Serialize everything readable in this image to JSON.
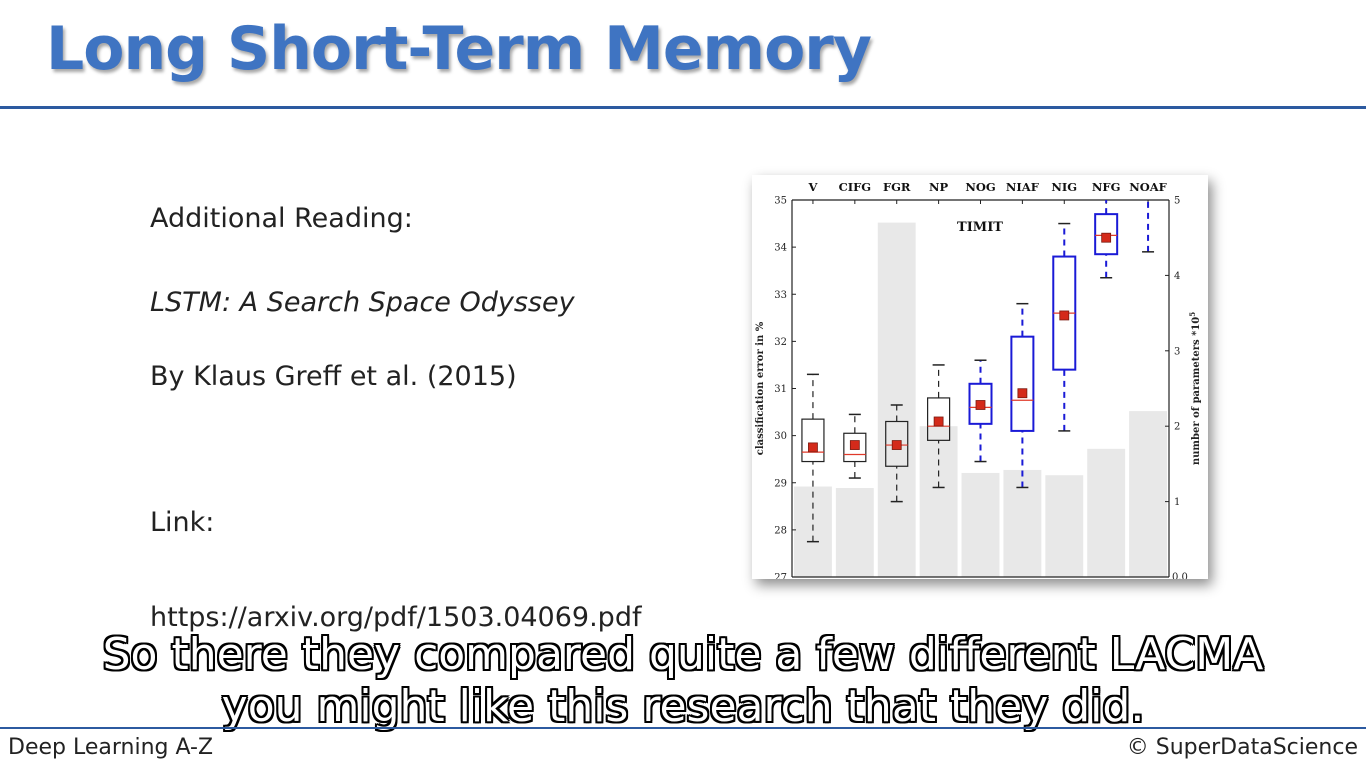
{
  "slide": {
    "title": "Long Short-Term Memory",
    "heading": "Additional Reading:",
    "paper_title": "LSTM: A Search Space Odyssey",
    "authors": "By Klaus Greff et al. (2015)",
    "link_label": "Link:",
    "link_url": "https://arxiv.org/pdf/1503.04069.pdf"
  },
  "caption": {
    "line1": "So there they compared quite a few different LACMA",
    "line2": "you might like this research that they did."
  },
  "footer": {
    "left": "Deep Learning A-Z",
    "right": "© SuperDataScience"
  },
  "colors": {
    "title": "#3f74c2",
    "rule": "#2c5aa0",
    "box_black": "#222222",
    "box_blue": "#1a1ad6",
    "mean_marker": "#d42a1a",
    "median": "#e03a2a",
    "param_bar": "#e8e8e8"
  },
  "chart_data": {
    "type": "bar",
    "title": "TIMIT",
    "categories": [
      "V",
      "CIFG",
      "FGR",
      "NP",
      "NOG",
      "NIAF",
      "NIG",
      "NFG",
      "NOAF"
    ],
    "ylabel": "classification error in %",
    "ylim": [
      27,
      35
    ],
    "yticks": [
      27,
      28,
      29,
      30,
      31,
      32,
      33,
      34,
      35
    ],
    "y2label": "number of parameters *10",
    "y2label_exponent": "5",
    "y2lim": [
      0,
      5
    ],
    "y2ticks": [
      "1",
      "2",
      "3",
      "4",
      "5"
    ],
    "y2tick_bottom": "0.0",
    "parameters_e5": [
      1.2,
      1.18,
      4.7,
      2.0,
      1.38,
      1.42,
      1.35,
      1.7,
      2.2
    ],
    "boxes": [
      {
        "name": "V",
        "color": "black",
        "whisker_low": 27.75,
        "q1": 29.45,
        "median": 29.65,
        "q3": 30.35,
        "whisker_high": 31.3,
        "mean": 29.75
      },
      {
        "name": "CIFG",
        "color": "black",
        "whisker_low": 29.1,
        "q1": 29.45,
        "median": 29.6,
        "q3": 30.05,
        "whisker_high": 30.45,
        "mean": 29.8
      },
      {
        "name": "FGR",
        "color": "black",
        "whisker_low": 28.6,
        "q1": 29.35,
        "median": 29.8,
        "q3": 30.3,
        "whisker_high": 30.65,
        "mean": 29.8
      },
      {
        "name": "NP",
        "color": "black",
        "whisker_low": 28.9,
        "q1": 29.9,
        "median": 30.2,
        "q3": 30.8,
        "whisker_high": 31.5,
        "mean": 30.3
      },
      {
        "name": "NOG",
        "color": "blue",
        "whisker_low": 29.45,
        "q1": 30.25,
        "median": 30.6,
        "q3": 31.1,
        "whisker_high": 31.6,
        "mean": 30.65
      },
      {
        "name": "NIAF",
        "color": "blue",
        "whisker_low": 28.9,
        "q1": 30.1,
        "median": 30.75,
        "q3": 32.1,
        "whisker_high": 32.8,
        "mean": 30.9
      },
      {
        "name": "NIG",
        "color": "blue",
        "whisker_low": 30.1,
        "q1": 31.4,
        "median": 32.6,
        "q3": 33.8,
        "whisker_high": 34.5,
        "mean": 32.55
      },
      {
        "name": "NFG",
        "color": "blue",
        "whisker_low": 33.35,
        "q1": 33.85,
        "median": 34.25,
        "q3": 34.7,
        "whisker_high": 35.3,
        "mean": 34.2
      },
      {
        "name": "NOAF",
        "color": "blue",
        "whisker_low": 33.9,
        "q1": null,
        "median": null,
        "q3": null,
        "whisker_high": 35.3,
        "mean": null
      }
    ],
    "grid": false,
    "legend": "none"
  }
}
